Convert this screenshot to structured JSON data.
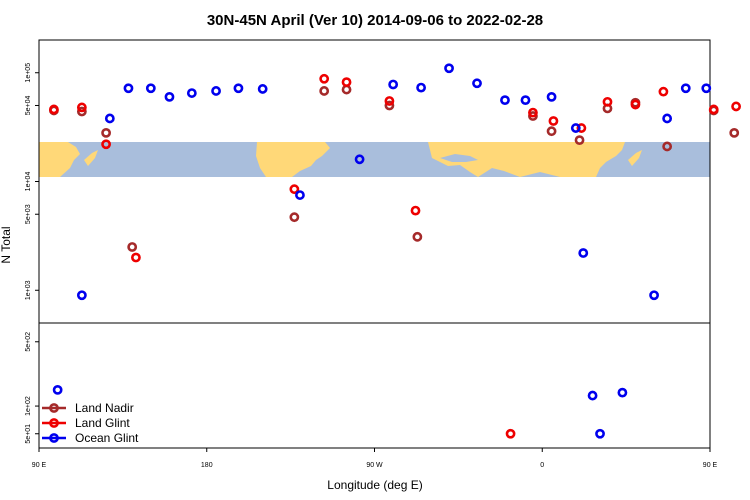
{
  "chart_data": {
    "type": "scatter",
    "title": "30N-45N April (Ver 10)   2014-09-06 to 2022-02-28",
    "xlabel": "Longitude (deg E)",
    "ylabel": "N Total",
    "xlim": [
      90,
      450
    ],
    "x_ticks": [
      {
        "value": 90,
        "label": "90 E"
      },
      {
        "value": 180,
        "label": "180"
      },
      {
        "value": 270,
        "label": "90 W"
      },
      {
        "value": 360,
        "label": "0"
      },
      {
        "value": 450,
        "label": "90 E"
      },
      {
        "value": 540,
        "label": "180"
      }
    ],
    "upper_panel": {
      "scale": "log",
      "ylim": [
        500,
        200000
      ],
      "y_ticks": [
        {
          "value": 1000,
          "label": "1e+03"
        },
        {
          "value": 5000,
          "label": "5e+03"
        },
        {
          "value": 10000,
          "label": "1e+04"
        },
        {
          "value": 50000,
          "label": "5e+04"
        },
        {
          "value": 100000,
          "label": "1e+05"
        }
      ],
      "map_band": {
        "ymin": 10000,
        "ymax": 20000
      }
    },
    "lower_panel": {
      "scale": "log",
      "ylim": [
        35,
        800
      ],
      "y_ticks": [
        {
          "value": 50,
          "label": "5e+01"
        },
        {
          "value": 100,
          "label": "1e+02"
        },
        {
          "value": 500,
          "label": "5e+02"
        }
      ]
    },
    "series": [
      {
        "name": "Land Nadir",
        "color": "#a52a2a",
        "points": [
          {
            "x": 98,
            "y": 45000
          },
          {
            "x": 113,
            "y": 44000
          },
          {
            "x": 126,
            "y": 28000
          },
          {
            "x": 140,
            "y": 2500
          },
          {
            "x": 227,
            "y": 4700
          },
          {
            "x": 243,
            "y": 68000
          },
          {
            "x": 255,
            "y": 70000
          },
          {
            "x": 278,
            "y": 50000
          },
          {
            "x": 293,
            "y": 3100
          },
          {
            "x": 355,
            "y": 40000
          },
          {
            "x": 365,
            "y": 29000
          },
          {
            "x": 380,
            "y": 24000
          },
          {
            "x": 395,
            "y": 47000
          },
          {
            "x": 410,
            "y": 53000
          },
          {
            "x": 427,
            "y": 21000
          },
          {
            "x": 452,
            "y": 45000
          },
          {
            "x": 463,
            "y": 28000
          },
          {
            "x": 478,
            "y": 2500
          }
        ]
      },
      {
        "name": "Land Glint",
        "color": "#ee0000",
        "points": [
          {
            "x": 98,
            "y": 46000
          },
          {
            "x": 113,
            "y": 48000
          },
          {
            "x": 126,
            "y": 22000
          },
          {
            "x": 142,
            "y": 2000
          },
          {
            "x": 227,
            "y": 8500
          },
          {
            "x": 243,
            "y": 88000
          },
          {
            "x": 255,
            "y": 82000
          },
          {
            "x": 278,
            "y": 55000
          },
          {
            "x": 292,
            "y": 5400
          },
          {
            "x": 343,
            "y": 50
          },
          {
            "x": 355,
            "y": 43000
          },
          {
            "x": 366,
            "y": 36000
          },
          {
            "x": 381,
            "y": 31000
          },
          {
            "x": 395,
            "y": 54000
          },
          {
            "x": 410,
            "y": 51000
          },
          {
            "x": 425,
            "y": 67000
          },
          {
            "x": 452,
            "y": 46000
          },
          {
            "x": 464,
            "y": 49000
          },
          {
            "x": 479,
            "y": 2000
          }
        ]
      },
      {
        "name": "Ocean Glint",
        "color": "#0000ee",
        "points": [
          {
            "x": 100,
            "y": 150
          },
          {
            "x": 113,
            "y": 900
          },
          {
            "x": 128,
            "y": 38000
          },
          {
            "x": 138,
            "y": 72000
          },
          {
            "x": 150,
            "y": 72000
          },
          {
            "x": 160,
            "y": 60000
          },
          {
            "x": 172,
            "y": 65000
          },
          {
            "x": 185,
            "y": 68000
          },
          {
            "x": 197,
            "y": 72000
          },
          {
            "x": 210,
            "y": 71000
          },
          {
            "x": 230,
            "y": 7500
          },
          {
            "x": 262,
            "y": 16000
          },
          {
            "x": 280,
            "y": 78000
          },
          {
            "x": 295,
            "y": 73000
          },
          {
            "x": 310,
            "y": 110000
          },
          {
            "x": 325,
            "y": 80000
          },
          {
            "x": 340,
            "y": 56000
          },
          {
            "x": 351,
            "y": 56000
          },
          {
            "x": 365,
            "y": 60000
          },
          {
            "x": 378,
            "y": 31000
          },
          {
            "x": 382,
            "y": 2200
          },
          {
            "x": 387,
            "y": 130
          },
          {
            "x": 391,
            "y": 50
          },
          {
            "x": 403,
            "y": 140
          },
          {
            "x": 420,
            "y": 900
          },
          {
            "x": 427,
            "y": 38000
          },
          {
            "x": 437,
            "y": 72000
          },
          {
            "x": 448,
            "y": 72000
          }
        ]
      }
    ],
    "legend": {
      "placement": "bottom-left",
      "entries": [
        "Land Nadir",
        "Land Glint",
        "Ocean Glint"
      ]
    },
    "grid": false
  }
}
